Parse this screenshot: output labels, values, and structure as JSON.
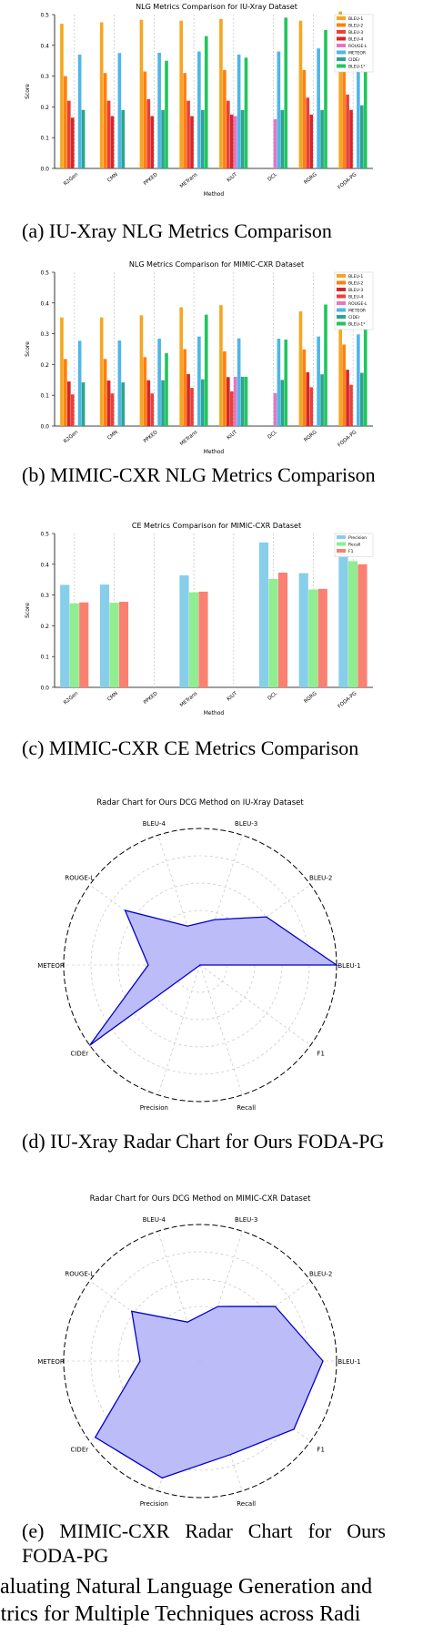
{
  "figure_caption": {
    "line1": "aluating Natural Language Generation and",
    "line2": "etrics for Multiple Techniques across Radi"
  },
  "captions": {
    "a": "(a) IU-Xray NLG Metrics Comparison",
    "b": "(b) MIMIC-CXR NLG Metrics Comparison",
    "c": "(c) MIMIC-CXR CE Metrics Comparison",
    "d": "(d) IU-Xray Radar Chart for Ours FODA-PG",
    "e": "(e) MIMIC-CXR Radar Chart for Ours FODA-PG"
  },
  "chart_data": [
    {
      "id": "a",
      "type": "bar",
      "title": "NLG Metrics Comparison for IU-Xray Dataset",
      "xlabel": "Method",
      "ylabel": "Score",
      "ylim": [
        0,
        0.5
      ],
      "yticks": [
        "0.0",
        "0.1",
        "0.2",
        "0.3",
        "0.4",
        "0.5"
      ],
      "categories": [
        "R2Gen",
        "CMN",
        "PPKED",
        "METrans",
        "KiUT",
        "DCL",
        "RGRG",
        "FODA-PG"
      ],
      "legend_position": "top-right",
      "series": [
        {
          "name": "BLEU-1",
          "color": "#f5a623",
          "values": [
            0.47,
            0.475,
            0.483,
            0.48,
            0.486,
            null,
            0.48,
            0.51
          ]
        },
        {
          "name": "BLEU-2",
          "color": "#ff7f0e",
          "values": [
            0.3,
            0.31,
            0.315,
            0.31,
            0.32,
            null,
            0.32,
            0.34
          ]
        },
        {
          "name": "BLEU-3",
          "color": "#e8413a",
          "values": [
            0.22,
            0.22,
            0.225,
            0.22,
            0.22,
            null,
            0.23,
            0.24
          ]
        },
        {
          "name": "BLEU-4",
          "color": "#d62728",
          "values": [
            0.165,
            0.17,
            0.17,
            0.17,
            0.175,
            null,
            0.175,
            0.19
          ]
        },
        {
          "name": "ROUGE-L",
          "color": "#e377c2",
          "values": [
            null,
            null,
            null,
            null,
            0.17,
            0.16,
            null,
            null
          ]
        },
        {
          "name": "METEOR",
          "color": "#4fb6e8",
          "values": [
            0.37,
            0.375,
            0.376,
            0.38,
            0.37,
            0.38,
            0.39,
            0.4
          ]
        },
        {
          "name": "CIDEr",
          "color": "#2ca58d",
          "values": [
            0.19,
            0.19,
            0.19,
            0.19,
            0.19,
            0.19,
            0.19,
            0.205
          ]
        },
        {
          "name": "BLEU-1*",
          "color": "#22c55e",
          "values": [
            null,
            null,
            0.35,
            0.43,
            0.36,
            0.49,
            0.45,
            0.47
          ]
        }
      ]
    },
    {
      "id": "b",
      "type": "bar",
      "title": "NLG Metrics Comparison for MIMIC-CXR Dataset",
      "xlabel": "Method",
      "ylabel": "Score",
      "ylim": [
        0,
        0.5
      ],
      "categories": [
        "R2Gen",
        "CMN",
        "PPKED",
        "METrans",
        "KiUT",
        "DCL",
        "RGRG",
        "FODA-PG"
      ],
      "legend_position": "top-right",
      "series": [
        {
          "name": "BLEU-1",
          "color": "#f5a623",
          "values": [
            0.353,
            0.353,
            0.36,
            0.386,
            0.393,
            null,
            0.373,
            0.4
          ]
        },
        {
          "name": "BLEU-2",
          "color": "#ff7f0e",
          "values": [
            0.218,
            0.218,
            0.224,
            0.25,
            0.243,
            null,
            0.249,
            0.265
          ]
        },
        {
          "name": "BLEU-3",
          "color": "#d62728",
          "values": [
            0.145,
            0.148,
            0.149,
            0.169,
            0.159,
            null,
            0.175,
            0.183
          ]
        },
        {
          "name": "BLEU-4",
          "color": "#e8413a",
          "values": [
            0.103,
            0.106,
            0.106,
            0.124,
            0.113,
            null,
            0.126,
            0.134
          ]
        },
        {
          "name": "ROUGE-L",
          "color": "#e377c2",
          "values": [
            null,
            null,
            null,
            null,
            0.16,
            0.107,
            null,
            null
          ]
        },
        {
          "name": "METEOR",
          "color": "#4fb6e8",
          "values": [
            0.277,
            0.278,
            0.284,
            0.291,
            0.285,
            0.284,
            0.291,
            0.298
          ]
        },
        {
          "name": "CIDEr",
          "color": "#2ca58d",
          "values": [
            0.142,
            0.142,
            0.149,
            0.152,
            0.16,
            0.15,
            0.168,
            0.173
          ]
        },
        {
          "name": "BLEU-1*",
          "color": "#22c55e",
          "values": [
            null,
            null,
            0.237,
            0.362,
            0.16,
            0.281,
            0.395,
            0.427
          ]
        }
      ]
    },
    {
      "id": "c",
      "type": "bar",
      "title": "CE Metrics Comparison for MIMIC-CXR Dataset",
      "xlabel": "Method",
      "ylabel": "Score",
      "ylim": [
        0,
        0.5
      ],
      "categories": [
        "R2Gen",
        "CMN",
        "PPKED",
        "METrans",
        "KiUT",
        "DCL",
        "RGRG",
        "FODA-PG"
      ],
      "legend_position": "top-right",
      "series": [
        {
          "name": "Precision",
          "color": "#87ceeb",
          "values": [
            0.333,
            0.334,
            null,
            0.364,
            null,
            0.471,
            0.371,
            0.44
          ]
        },
        {
          "name": "Recall",
          "color": "#90ee90",
          "values": [
            0.273,
            0.275,
            null,
            0.309,
            null,
            0.352,
            0.318,
            0.41
          ]
        },
        {
          "name": "F1",
          "color": "#fa8072",
          "values": [
            0.276,
            0.278,
            null,
            0.311,
            null,
            0.373,
            0.32,
            0.4
          ]
        }
      ]
    },
    {
      "id": "d",
      "type": "radar",
      "title": "Radar Chart for Ours DCG Method on IU-Xray Dataset",
      "axes": [
        "BLEU-1",
        "BLEU-2",
        "BLEU-3",
        "BLEU-4",
        "ROUGE-L",
        "METEOR",
        "CIDEr",
        "Precision",
        "Recall",
        "F1"
      ],
      "axis_display_order_ccw_from_east": [
        "BLEU-1",
        "BLEU-2",
        "BLEU-3",
        "BLEU-4",
        "ROUGE-L",
        "METEOR",
        "CIDEr",
        "Precision",
        "Recall",
        "F1"
      ],
      "values": [
        1.0,
        0.6,
        0.35,
        0.3,
        0.68,
        0.38,
        1.0,
        0.0,
        0.0,
        0.0
      ],
      "fill_color": "#b8b8f8",
      "line_color": "#0000cc"
    },
    {
      "id": "e",
      "type": "radar",
      "title": "Radar Chart for Ours DCG Method on MIMIC-CXR Dataset",
      "axes": [
        "BLEU-1",
        "BLEU-2",
        "BLEU-3",
        "BLEU-4",
        "ROUGE-L",
        "METEOR",
        "CIDEr",
        "Precision",
        "Recall",
        "F1"
      ],
      "values": [
        0.9,
        0.68,
        0.42,
        0.3,
        0.62,
        0.44,
        0.95,
        0.9,
        0.72,
        0.85
      ],
      "fill_color": "#b8b8f8",
      "line_color": "#0000cc"
    }
  ]
}
